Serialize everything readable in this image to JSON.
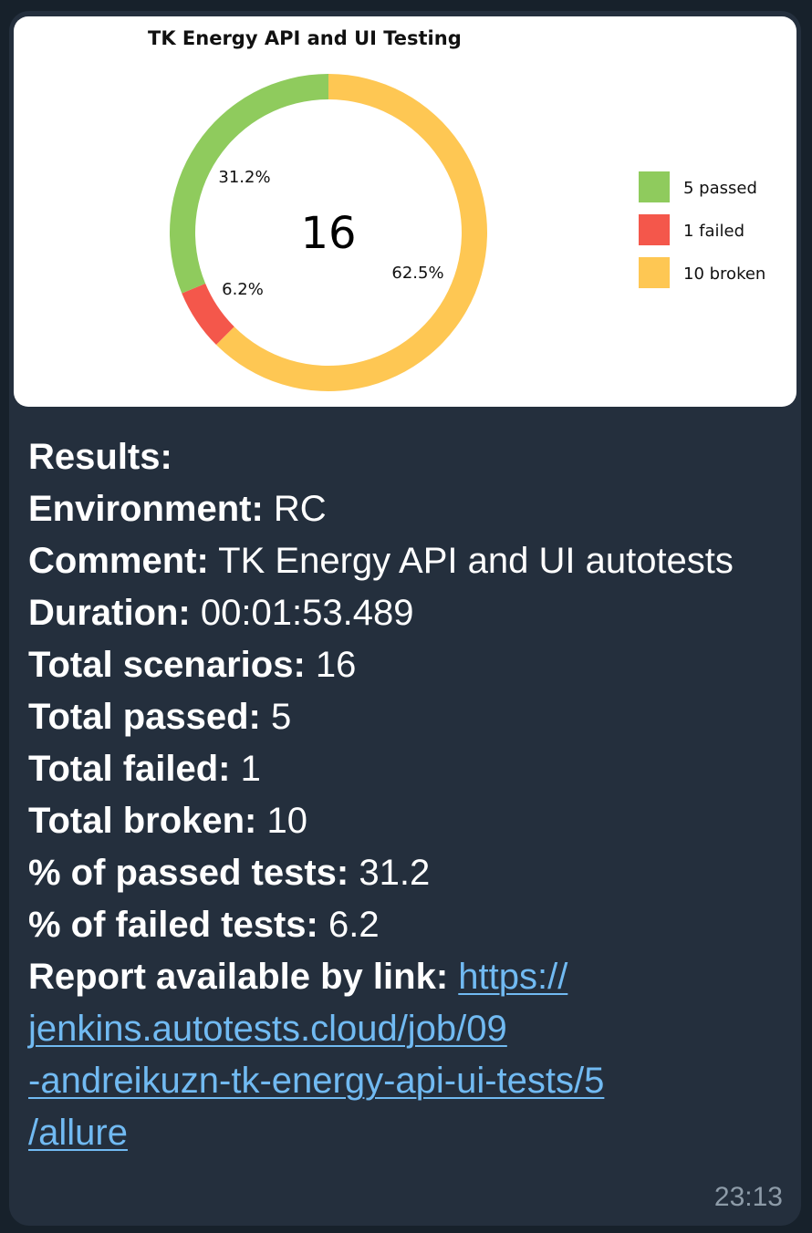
{
  "chart_data": {
    "type": "pie",
    "title": "TK Energy API and UI Testing",
    "center_label": "16",
    "slices": [
      {
        "label": "passed",
        "value": 5,
        "percent_label": "31.2%",
        "legend": "5 passed",
        "color": "#8fcb5d"
      },
      {
        "label": "failed",
        "value": 1,
        "percent_label": "6.2%",
        "legend": "1 failed",
        "color": "#f4574b"
      },
      {
        "label": "broken",
        "value": 10,
        "percent_label": "62.5%",
        "legend": "10 broken",
        "color": "#fec753"
      }
    ],
    "legend_position": "right"
  },
  "message": {
    "results_label": "Results:",
    "environment_label": "Environment:",
    "environment_value": "RC",
    "comment_label": "Comment:",
    "comment_value": "TK Energy API and UI autotests",
    "duration_label": "Duration:",
    "duration_value": "00:01:53.489",
    "total_scenarios_label": "Total scenarios:",
    "total_scenarios_value": "16",
    "total_passed_label": "Total passed:",
    "total_passed_value": "5",
    "total_failed_label": "Total failed:",
    "total_failed_value": "1",
    "total_broken_label": "Total broken:",
    "total_broken_value": "10",
    "pct_passed_label": "% of passed tests:",
    "pct_passed_value": "31.2",
    "pct_failed_label": "% of failed tests:",
    "pct_failed_value": "6.2",
    "report_label": "Report available by link:",
    "report_link_line1": "https://",
    "report_link_line2": "jenkins.autotests.cloud/job/09",
    "report_link_line3": "-andreikuzn-tk-energy-api-ui-tests/5",
    "report_link_line4": "/allure"
  },
  "timestamp": "23:13"
}
